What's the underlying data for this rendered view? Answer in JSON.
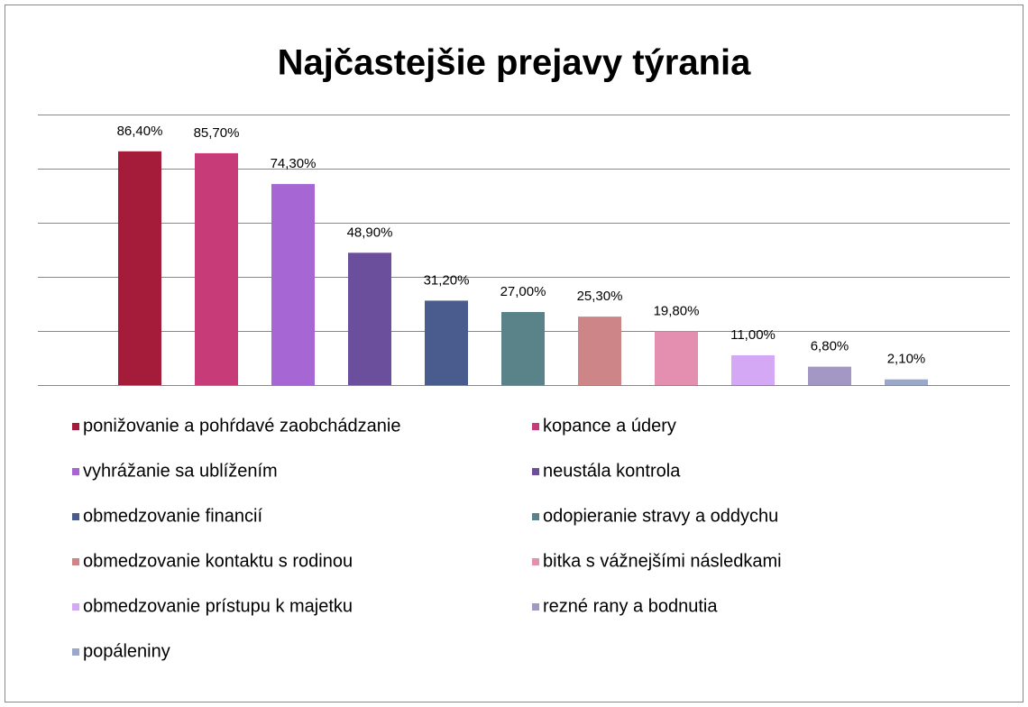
{
  "chart_data": {
    "type": "bar",
    "title": "Najčastejšie prejavy týrania",
    "ylim": [
      0,
      100
    ],
    "yticks": [
      0,
      20,
      40,
      60,
      80,
      100
    ],
    "grid": true,
    "legend": "bottom",
    "series": [
      {
        "name": "ponižovanie a pohŕdavé zaobchádzanie",
        "color": "#a51c3a",
        "values": [
          86.4
        ],
        "value_labels": [
          "86,40%"
        ]
      },
      {
        "name": "kopance a údery",
        "color": "#c73c78",
        "values": [
          85.7
        ],
        "value_labels": [
          "85,70%"
        ]
      },
      {
        "name": "vyhrážanie sa ublížením",
        "color": "#a667d4",
        "values": [
          74.3
        ],
        "value_labels": [
          "74,30%"
        ]
      },
      {
        "name": "neustála kontrola",
        "color": "#6b4f9c",
        "values": [
          48.9
        ],
        "value_labels": [
          "48,90%"
        ]
      },
      {
        "name": "obmedzovanie financií",
        "color": "#4a5b8e",
        "values": [
          31.2
        ],
        "value_labels": [
          "31,20%"
        ]
      },
      {
        "name": "odopieranie stravy a oddychu",
        "color": "#5a8289",
        "values": [
          27.0
        ],
        "value_labels": [
          "27,00%"
        ]
      },
      {
        "name": "obmedzovanie kontaktu s rodinou",
        "color": "#cd8588",
        "values": [
          25.3
        ],
        "value_labels": [
          "25,30%"
        ]
      },
      {
        "name": "bitka s vážnejšími následkami",
        "color": "#e58fb0",
        "values": [
          19.8
        ],
        "value_labels": [
          "19,80%"
        ]
      },
      {
        "name": "obmedzovanie prístupu k majetku",
        "color": "#d4a8f5",
        "values": [
          11.0
        ],
        "value_labels": [
          "11,00%"
        ]
      },
      {
        "name": "rezné rany a bodnutia",
        "color": "#a398c4",
        "values": [
          6.8
        ],
        "value_labels": [
          "6,80%"
        ]
      },
      {
        "name": "popáleniny",
        "color": "#9aa8cc",
        "values": [
          2.1
        ],
        "value_labels": [
          "2,10%"
        ]
      }
    ]
  }
}
